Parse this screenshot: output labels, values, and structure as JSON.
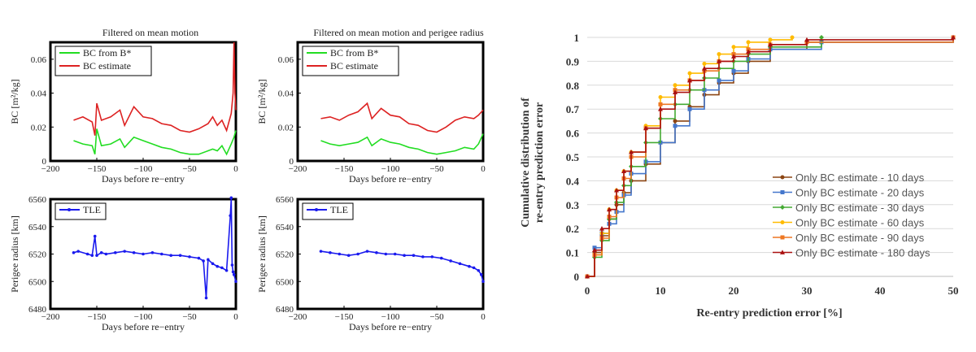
{
  "left_panel": {
    "col_titles": [
      "Filtered on mean motion",
      "Filtered on mean motion and perigee radius"
    ],
    "top_ylabel": "BC [m²/kg]",
    "bottom_ylabel": "Perigee radius [km]",
    "xlabel": "Days before re−entry",
    "top_yticks": [
      "0",
      "0.02",
      "0.04",
      "0.06"
    ],
    "bottom_yticks": [
      "6480",
      "6500",
      "6520",
      "6540",
      "6560"
    ],
    "xticks": [
      "−200",
      "−150",
      "−100",
      "−50",
      "0"
    ],
    "legend_top": [
      "BC from B*",
      "BC estimate"
    ],
    "legend_bottom": [
      "TLE"
    ]
  },
  "right_panel": {
    "ylabel_line1": "Cumulative distribution of",
    "ylabel_line2": "re-entry prediction error",
    "xlabel": "Re-entry prediction error [%]",
    "yticks": [
      "0",
      "0.1",
      "0.2",
      "0.3",
      "0.4",
      "0.5",
      "0.6",
      "0.7",
      "0.8",
      "0.9",
      "1"
    ],
    "xticks": [
      "0",
      "10",
      "20",
      "30",
      "40",
      "50"
    ]
  },
  "chart_data": [
    {
      "type": "line",
      "panel": "top-left",
      "title": "Filtered on mean motion",
      "xlabel": "Days before re−entry",
      "ylabel": "BC [m²/kg]",
      "xlim": [
        -200,
        0
      ],
      "ylim": [
        0,
        0.07
      ],
      "legend": "top-left",
      "series": [
        {
          "name": "BC from B*",
          "color": "#22dd22",
          "x": [
            -175,
            -165,
            -155,
            -152,
            -150,
            -145,
            -135,
            -125,
            -120,
            -110,
            -100,
            -90,
            -80,
            -70,
            -60,
            -50,
            -40,
            -30,
            -25,
            -20,
            -15,
            -10,
            -5,
            -2,
            0
          ],
          "y": [
            0.012,
            0.01,
            0.009,
            0.004,
            0.019,
            0.009,
            0.01,
            0.013,
            0.008,
            0.014,
            0.012,
            0.01,
            0.008,
            0.007,
            0.005,
            0.004,
            0.004,
            0.006,
            0.007,
            0.006,
            0.009,
            0.004,
            0.01,
            0.014,
            0.018
          ]
        },
        {
          "name": "BC estimate",
          "color": "#dd2222",
          "x": [
            -175,
            -165,
            -155,
            -152,
            -150,
            -145,
            -135,
            -125,
            -120,
            -110,
            -100,
            -90,
            -80,
            -70,
            -60,
            -50,
            -40,
            -30,
            -25,
            -20,
            -15,
            -10,
            -5,
            -3,
            -2,
            -1,
            0
          ],
          "y": [
            0.024,
            0.026,
            0.023,
            0.015,
            0.034,
            0.024,
            0.026,
            0.03,
            0.021,
            0.032,
            0.026,
            0.025,
            0.022,
            0.021,
            0.018,
            0.017,
            0.019,
            0.022,
            0.026,
            0.021,
            0.024,
            0.018,
            0.028,
            0.04,
            0.07,
            0.04,
            0.03
          ]
        }
      ]
    },
    {
      "type": "line",
      "panel": "top-middle",
      "title": "Filtered on mean motion and perigee radius",
      "xlabel": "Days before re−entry",
      "ylabel": "BC [m²/kg]",
      "xlim": [
        -200,
        0
      ],
      "ylim": [
        0,
        0.07
      ],
      "legend": "top-left",
      "series": [
        {
          "name": "BC from B*",
          "color": "#22dd22",
          "x": [
            -175,
            -165,
            -155,
            -145,
            -135,
            -125,
            -120,
            -110,
            -100,
            -90,
            -80,
            -70,
            -60,
            -50,
            -40,
            -30,
            -20,
            -10,
            -5,
            0
          ],
          "y": [
            0.012,
            0.01,
            0.009,
            0.01,
            0.011,
            0.014,
            0.009,
            0.013,
            0.011,
            0.01,
            0.008,
            0.007,
            0.005,
            0.004,
            0.005,
            0.006,
            0.008,
            0.007,
            0.01,
            0.016
          ]
        },
        {
          "name": "BC estimate",
          "color": "#dd2222",
          "x": [
            -175,
            -165,
            -155,
            -145,
            -135,
            -125,
            -120,
            -110,
            -100,
            -90,
            -80,
            -70,
            -60,
            -50,
            -40,
            -30,
            -20,
            -10,
            -5,
            0
          ],
          "y": [
            0.025,
            0.026,
            0.024,
            0.027,
            0.029,
            0.034,
            0.025,
            0.031,
            0.027,
            0.026,
            0.022,
            0.021,
            0.018,
            0.017,
            0.02,
            0.024,
            0.026,
            0.025,
            0.027,
            0.03
          ]
        }
      ]
    },
    {
      "type": "line",
      "panel": "bottom-left",
      "xlabel": "Days before re−entry",
      "ylabel": "Perigee radius [km]",
      "xlim": [
        -200,
        0
      ],
      "ylim": [
        6480,
        6560
      ],
      "legend": "top-left",
      "series": [
        {
          "name": "TLE",
          "color": "#1a1aee",
          "x": [
            -175,
            -170,
            -160,
            -155,
            -152,
            -150,
            -145,
            -140,
            -130,
            -120,
            -110,
            -100,
            -90,
            -80,
            -70,
            -60,
            -50,
            -40,
            -35,
            -32,
            -30,
            -25,
            -20,
            -15,
            -10,
            -6,
            -5,
            -4,
            -3,
            -2,
            0
          ],
          "y": [
            6521,
            6522,
            6520,
            6519,
            6533,
            6519,
            6521,
            6520,
            6521,
            6522,
            6521,
            6520,
            6521,
            6520,
            6519,
            6519,
            6518,
            6517,
            6515,
            6488,
            6516,
            6513,
            6511,
            6510,
            6508,
            6548,
            6561,
            6512,
            6507,
            6505,
            6500
          ]
        }
      ]
    },
    {
      "type": "line",
      "panel": "bottom-middle",
      "xlabel": "Days before re−entry",
      "ylabel": "Perigee radius [km]",
      "xlim": [
        -200,
        0
      ],
      "ylim": [
        6480,
        6560
      ],
      "legend": "top-left",
      "series": [
        {
          "name": "TLE",
          "color": "#1a1aee",
          "x": [
            -175,
            -165,
            -155,
            -145,
            -135,
            -125,
            -115,
            -105,
            -95,
            -85,
            -75,
            -65,
            -55,
            -45,
            -35,
            -25,
            -15,
            -10,
            -5,
            -2,
            0
          ],
          "y": [
            6522,
            6521,
            6520,
            6519,
            6520,
            6522,
            6521,
            6520,
            6520,
            6519,
            6519,
            6518,
            6518,
            6517,
            6515,
            6513,
            6511,
            6510,
            6508,
            6505,
            6500
          ]
        }
      ]
    },
    {
      "type": "line",
      "panel": "right",
      "xlabel": "Re-entry prediction error [%]",
      "ylabel": "Cumulative distribution of re-entry prediction error",
      "xlim": [
        0,
        50
      ],
      "ylim": [
        0,
        1
      ],
      "legend": "bottom-right",
      "series": [
        {
          "name": "Only BC estimate - 10 days",
          "color": "#8b4513",
          "x": [
            0,
            1,
            2,
            3,
            4,
            5,
            6,
            8,
            10,
            12,
            14,
            16,
            18,
            20,
            22,
            25,
            30,
            50
          ],
          "y": [
            0,
            0.1,
            0.17,
            0.24,
            0.3,
            0.35,
            0.4,
            0.47,
            0.56,
            0.65,
            0.71,
            0.76,
            0.81,
            0.85,
            0.9,
            0.95,
            0.98,
            1.0
          ]
        },
        {
          "name": "Only BC estimate - 20 days",
          "color": "#4477cc",
          "x": [
            0,
            1,
            2,
            3,
            4,
            5,
            6,
            8,
            10,
            12,
            14,
            16,
            18,
            20,
            22,
            25,
            32,
            50
          ],
          "y": [
            0,
            0.12,
            0.18,
            0.22,
            0.27,
            0.34,
            0.43,
            0.48,
            0.56,
            0.63,
            0.7,
            0.78,
            0.82,
            0.86,
            0.91,
            0.95,
            0.98,
            1.0
          ]
        },
        {
          "name": "Only BC estimate - 30 days",
          "color": "#44aa33",
          "x": [
            0,
            1,
            2,
            3,
            4,
            5,
            6,
            8,
            10,
            12,
            14,
            16,
            18,
            20,
            22,
            25,
            32
          ],
          "y": [
            0,
            0.08,
            0.15,
            0.24,
            0.31,
            0.38,
            0.46,
            0.56,
            0.66,
            0.72,
            0.78,
            0.83,
            0.87,
            0.9,
            0.93,
            0.96,
            1.0
          ]
        },
        {
          "name": "Only BC estimate - 60 days",
          "color": "#ffbb00",
          "x": [
            0,
            1,
            2,
            3,
            4,
            5,
            6,
            8,
            10,
            12,
            14,
            16,
            18,
            20,
            22,
            25,
            28
          ],
          "y": [
            0,
            0.09,
            0.18,
            0.28,
            0.36,
            0.44,
            0.52,
            0.63,
            0.75,
            0.8,
            0.85,
            0.89,
            0.93,
            0.96,
            0.98,
            0.99,
            1.0
          ]
        },
        {
          "name": "Only BC estimate - 90 days",
          "color": "#ee7722",
          "x": [
            0,
            1,
            2,
            3,
            4,
            5,
            6,
            8,
            10,
            12,
            14,
            16,
            18,
            20,
            22,
            25,
            30,
            50
          ],
          "y": [
            0,
            0.09,
            0.16,
            0.25,
            0.33,
            0.41,
            0.5,
            0.62,
            0.72,
            0.78,
            0.82,
            0.86,
            0.9,
            0.93,
            0.95,
            0.97,
            0.98,
            1.0
          ]
        },
        {
          "name": "Only BC estimate - 180 days",
          "color": "#aa1111",
          "x": [
            0,
            1,
            2,
            3,
            4,
            5,
            6,
            8,
            10,
            12,
            14,
            16,
            18,
            20,
            22,
            25,
            30,
            50
          ],
          "y": [
            0,
            0.11,
            0.2,
            0.28,
            0.36,
            0.44,
            0.52,
            0.62,
            0.7,
            0.77,
            0.82,
            0.87,
            0.9,
            0.92,
            0.94,
            0.97,
            0.99,
            1.0
          ]
        }
      ]
    }
  ]
}
